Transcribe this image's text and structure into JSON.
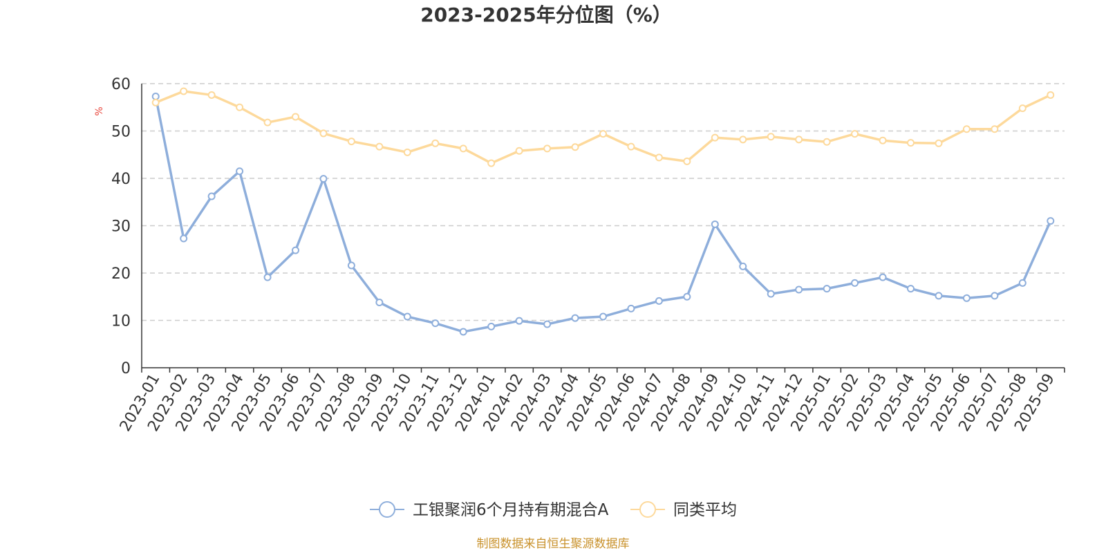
{
  "chart_data": {
    "type": "line",
    "title": "2023-2025年分位图（%）",
    "ylabel": "%",
    "ylim": [
      0,
      60
    ],
    "yticks": [
      0,
      10,
      20,
      30,
      40,
      50,
      60
    ],
    "grid": true,
    "legend_position": "bottom",
    "categories": [
      "2023-01",
      "2023-02",
      "2023-03",
      "2023-04",
      "2023-05",
      "2023-06",
      "2023-07",
      "2023-08",
      "2023-09",
      "2023-10",
      "2023-11",
      "2023-12",
      "2024-01",
      "2024-02",
      "2024-03",
      "2024-04",
      "2024-05",
      "2024-06",
      "2024-07",
      "2024-08",
      "2024-09",
      "2024-10",
      "2024-11",
      "2024-12",
      "2025-01",
      "2025-02",
      "2025-03",
      "2025-04",
      "2025-05",
      "2025-06",
      "2025-07",
      "2025-08",
      "2025-09"
    ],
    "series": [
      {
        "name": "工银聚润6个月持有期混合A",
        "color": "#8eaedb",
        "values": [
          57.3,
          27.3,
          36.2,
          41.5,
          19.1,
          24.8,
          39.9,
          21.6,
          13.8,
          10.8,
          9.4,
          7.6,
          8.7,
          9.9,
          9.2,
          10.5,
          10.8,
          12.5,
          14.1,
          15.0,
          30.3,
          21.4,
          15.6,
          16.5,
          16.7,
          17.9,
          19.1,
          16.7,
          15.2,
          14.7,
          15.2,
          17.9,
          31.0
        ]
      },
      {
        "name": "同类平均",
        "color": "#fdd99b",
        "values": [
          56.0,
          58.4,
          57.6,
          55.0,
          51.8,
          53.0,
          49.5,
          47.8,
          46.7,
          45.5,
          47.4,
          46.3,
          43.2,
          45.8,
          46.3,
          46.6,
          49.4,
          46.7,
          44.4,
          43.6,
          48.6,
          48.2,
          48.8,
          48.2,
          47.7,
          49.4,
          48.0,
          47.5,
          47.4,
          50.4,
          50.4,
          54.8,
          57.6
        ]
      }
    ]
  },
  "unit_label": "%",
  "unit_color": "#e8463c",
  "source_text": "制图数据来自恒生聚源数据库",
  "source_color": "#c9922c"
}
